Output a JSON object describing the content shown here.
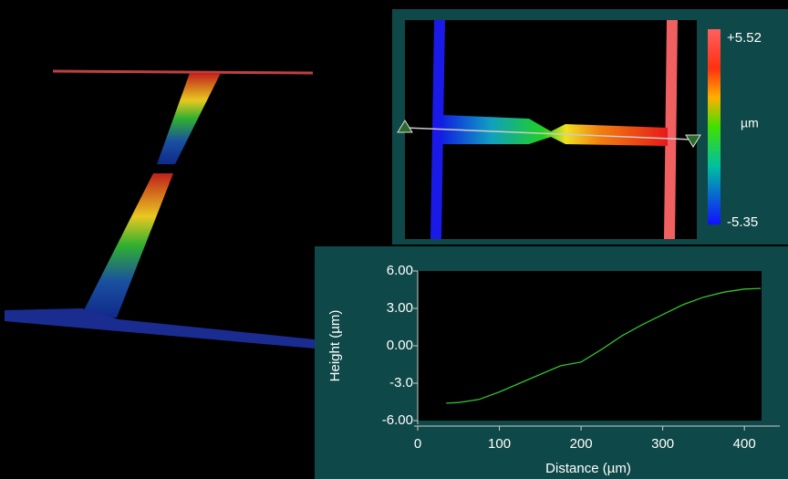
{
  "colorbar": {
    "max_label": "+5.52",
    "unit": "µm",
    "min_label": "-5.35"
  },
  "chart_data": {
    "type": "line",
    "x_label": "Distance  (µm)",
    "y_label": "Height  (µm)",
    "x": [
      35,
      50,
      75,
      100,
      125,
      150,
      175,
      200,
      225,
      250,
      275,
      300,
      325,
      350,
      375,
      400,
      420
    ],
    "series": [
      {
        "color": "#2fc42f",
        "values": [
          -4.6,
          -4.55,
          -4.3,
          -3.7,
          -3.0,
          -2.3,
          -1.6,
          -1.3,
          -0.3,
          0.8,
          1.7,
          2.5,
          3.3,
          3.9,
          4.3,
          4.55,
          4.6
        ]
      }
    ],
    "xlim": [
      0,
      421
    ],
    "ylim": [
      -6,
      6
    ],
    "xticks": [
      0,
      100,
      200,
      300,
      400
    ],
    "yticks": [
      {
        "value": 6,
        "label": "6.00"
      },
      {
        "value": 3,
        "label": "3.00"
      },
      {
        "value": 0,
        "label": "0.00"
      },
      {
        "value": -3,
        "label": "-3.0"
      },
      {
        "value": -6,
        "label": "-6.00"
      }
    ]
  }
}
